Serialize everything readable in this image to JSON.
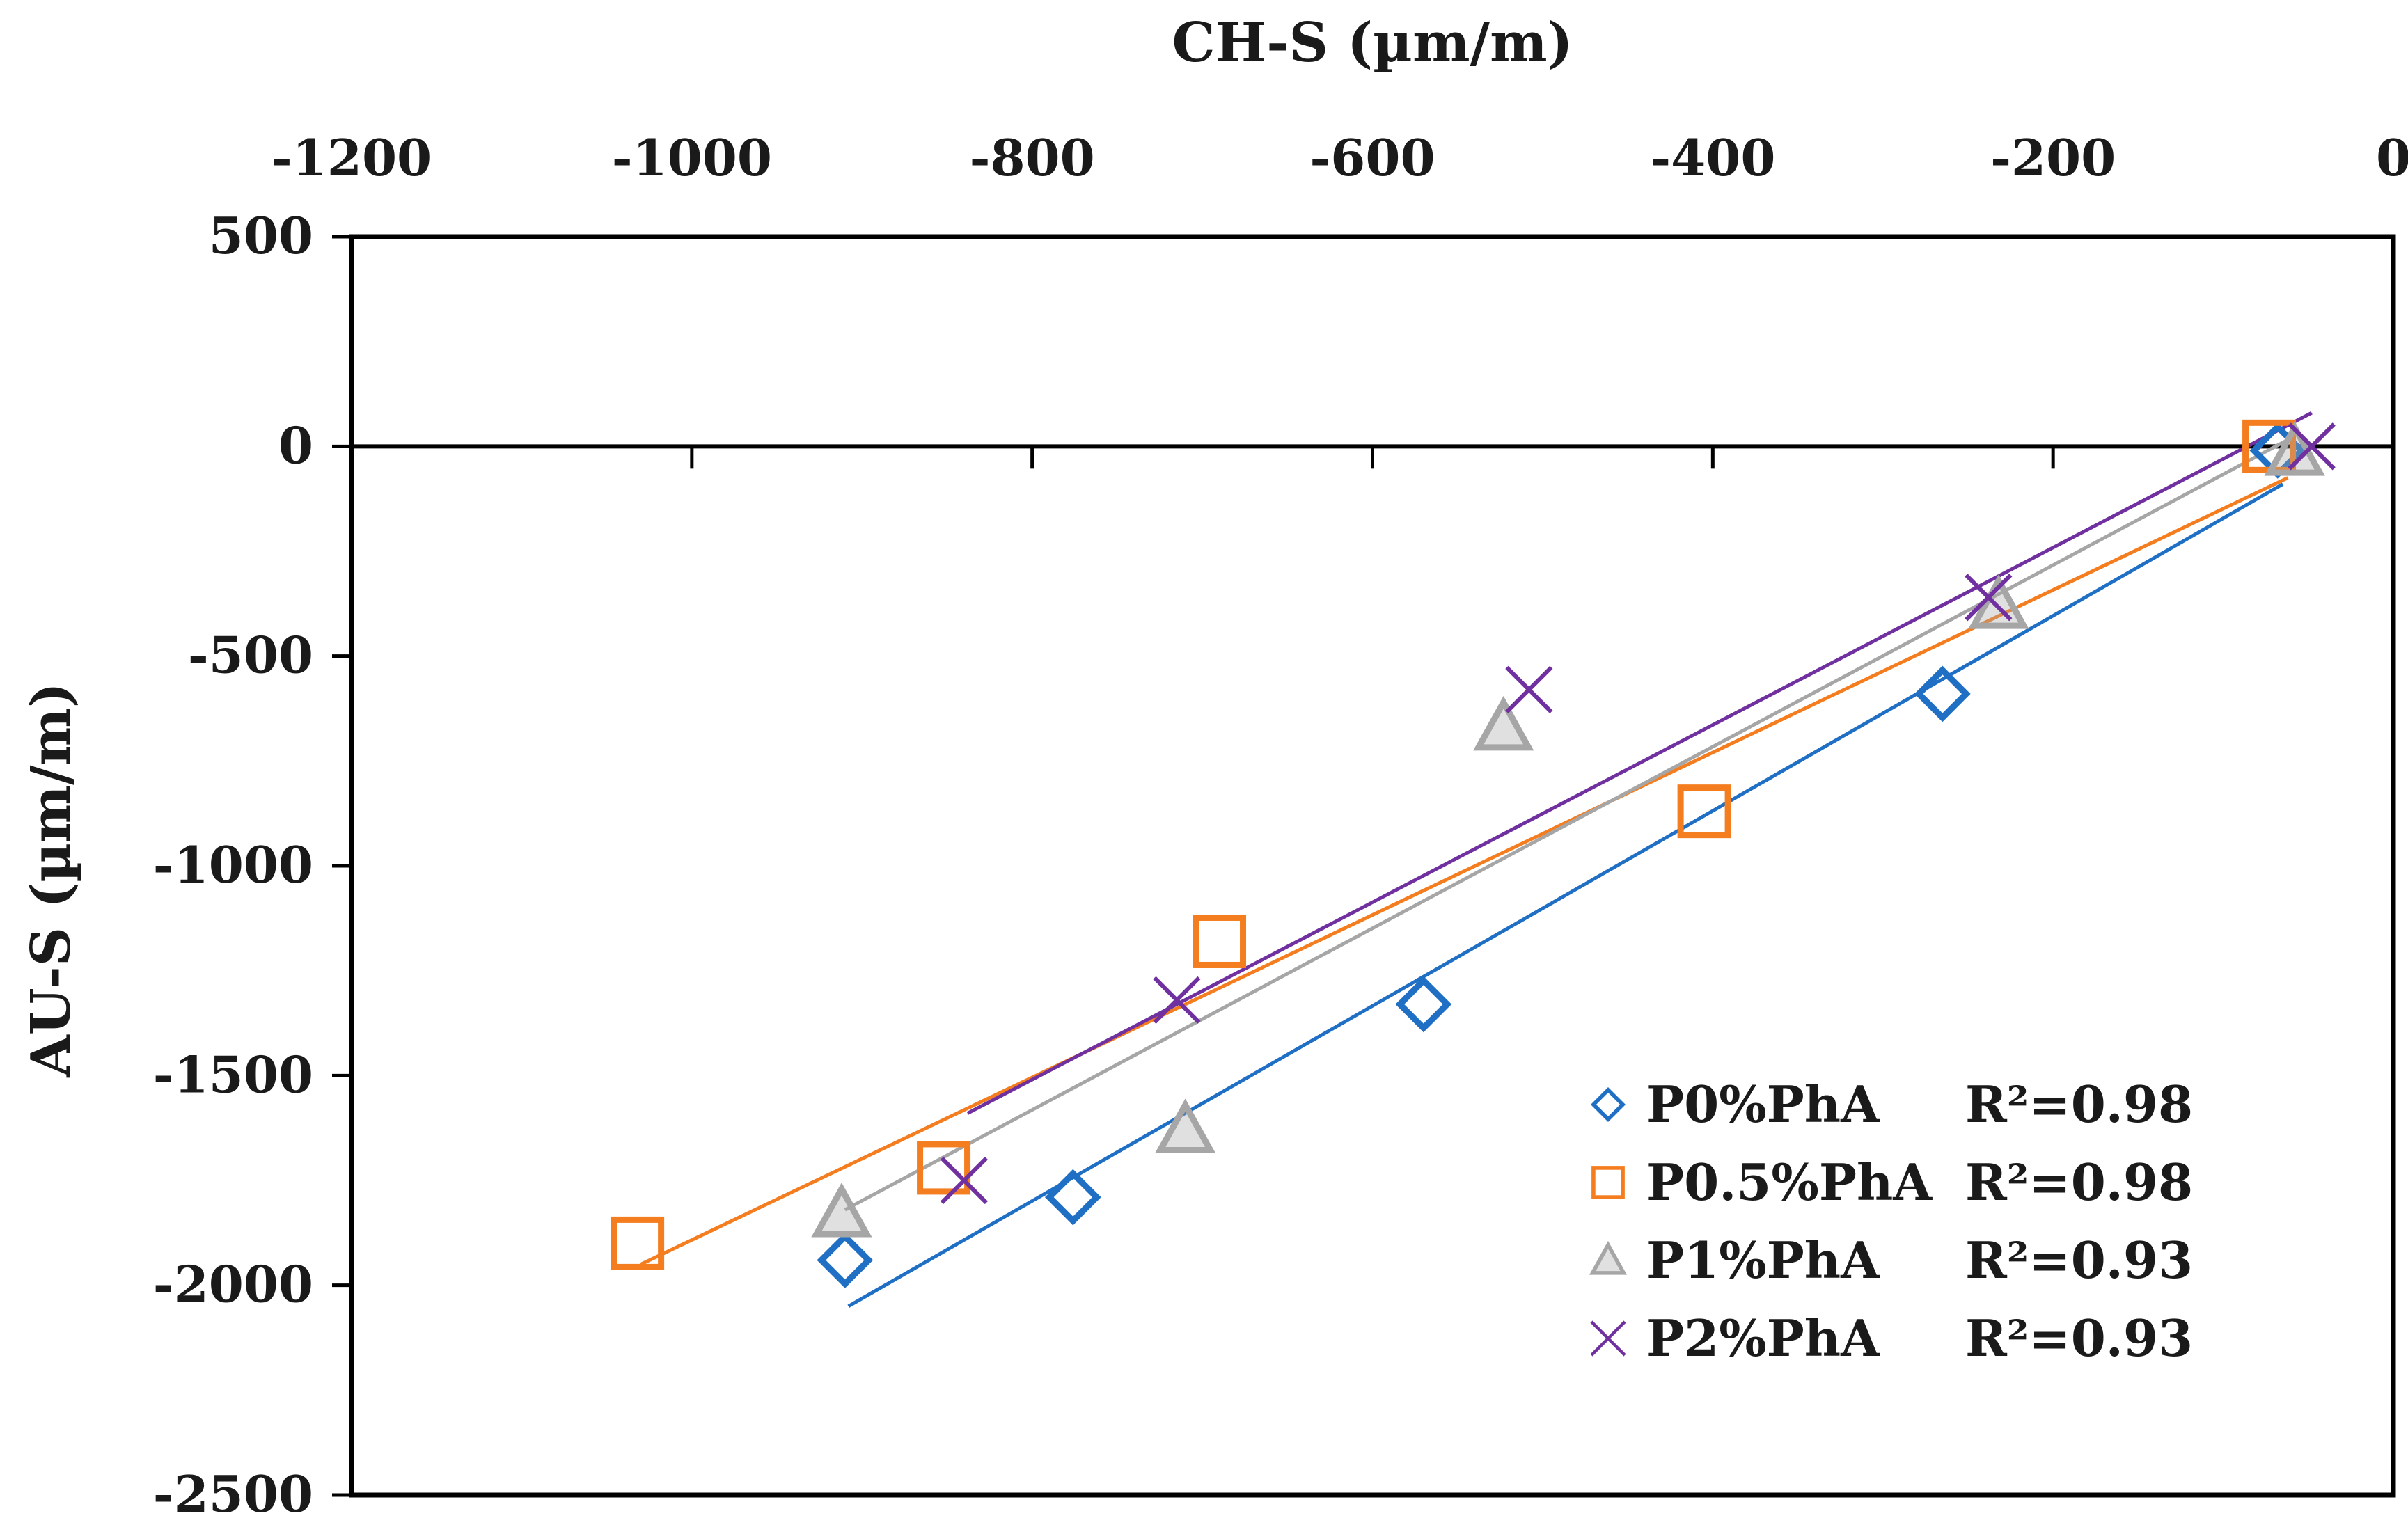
{
  "chart_data": {
    "type": "scatter",
    "title": "",
    "xlabel": "CH-S (µm/m)",
    "ylabel": "AU-S (µm/m)",
    "xlim": [
      -1200,
      0
    ],
    "ylim": [
      -2500,
      500
    ],
    "x_ticks": [
      "-1200",
      "-1000",
      "-800",
      "-600",
      "-400",
      "-200",
      "0"
    ],
    "y_ticks": [
      "500",
      "0",
      "-500",
      "-1000",
      "-1500",
      "-2000",
      "-2500"
    ],
    "x_axis_position": "top",
    "zero_line": true,
    "grid": false,
    "legend_position": "bottom-right",
    "series": [
      {
        "name": "P0%PhA",
        "r2": "R²=0.98",
        "color": "#1f6fc5",
        "marker": "diamond",
        "points": [
          [
            -910,
            -1940
          ],
          [
            -776,
            -1790
          ],
          [
            -570,
            -1330
          ],
          [
            -265,
            -590
          ],
          [
            -68,
            -10
          ]
        ],
        "fit": [
          [
            -908,
            -2050
          ],
          [
            -65,
            -90
          ]
        ]
      },
      {
        "name": "P0.5%PhA",
        "r2": "R²=0.98",
        "color": "#f47d20",
        "marker": "square",
        "points": [
          [
            -1032,
            -1900
          ],
          [
            -852,
            -1720
          ],
          [
            -690,
            -1180
          ],
          [
            -405,
            -870
          ],
          [
            -73,
            0
          ]
        ],
        "fit": [
          [
            -1030,
            -1950
          ],
          [
            -62,
            -75
          ]
        ]
      },
      {
        "name": "P1%PhA",
        "r2": "R²=0.93",
        "color": "#a6a6a6",
        "marker": "triangle",
        "points": [
          [
            -912,
            -1830
          ],
          [
            -710,
            -1630
          ],
          [
            -523,
            -670
          ],
          [
            -232,
            -380
          ],
          [
            -58,
            -15
          ]
        ],
        "fit": [
          [
            -910,
            -1820
          ],
          [
            -60,
            20
          ]
        ]
      },
      {
        "name": "P2%PhA",
        "r2": "R²=0.93",
        "color": "#7030a0",
        "marker": "x",
        "points": [
          [
            -840,
            -1750
          ],
          [
            -715,
            -1320
          ],
          [
            -508,
            -580
          ],
          [
            -238,
            -360
          ],
          [
            -48,
            0
          ]
        ],
        "fit": [
          [
            -838,
            -1590
          ],
          [
            -48,
            80
          ]
        ]
      }
    ]
  }
}
